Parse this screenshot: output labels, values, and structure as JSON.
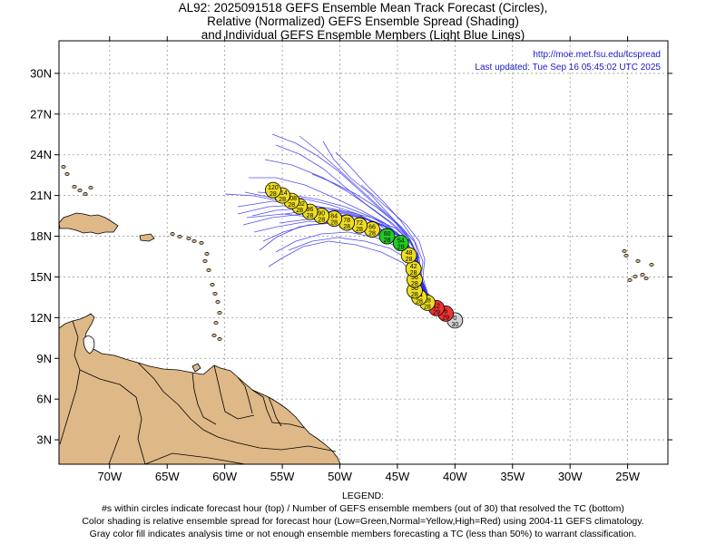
{
  "title": {
    "line1": "AL92: 2025091518 GEFS Ensemble Mean Track Forecast (Circles),",
    "line2": "Relative (Normalized) GEFS Ensemble Spread (Shading)",
    "line3": "and Individual GEFS Ensemble Members (Light Blue Lines)"
  },
  "info": {
    "url": "http://moe.met.fsu.edu/tcspread",
    "updated": "Last updated: Tue Sep 16 05:45:02 UTC 2025"
  },
  "axes": {
    "lat_labels": [
      "30N",
      "27N",
      "24N",
      "21N",
      "18N",
      "15N",
      "12N",
      "9N",
      "6N",
      "3N"
    ],
    "lat_values": [
      30,
      27,
      24,
      21,
      18,
      15,
      12,
      9,
      6,
      3
    ],
    "lon_labels": [
      "70W",
      "65W",
      "60W",
      "55W",
      "50W",
      "45W",
      "40W",
      "35W",
      "30W",
      "25W"
    ],
    "lon_values": [
      -70,
      -65,
      -60,
      -55,
      -50,
      -45,
      -40,
      -35,
      -30,
      -25
    ],
    "lat_range": [
      1.2,
      32.4
    ],
    "lon_range": [
      -74.4,
      -21.5
    ]
  },
  "colors": {
    "land": "#DEB887",
    "member_line": "#3333ee",
    "gray": "#d3d3d3",
    "green": "#22cc22",
    "yellow": "#eedd22",
    "red": "#ee3333",
    "grid": "#999999"
  },
  "track": [
    {
      "hour": "0",
      "members": "30",
      "lon": -40.0,
      "lat": 11.8,
      "color": "gray"
    },
    {
      "hour": "6",
      "members": "29",
      "lon": -40.8,
      "lat": 12.3,
      "color": "red"
    },
    {
      "hour": "12",
      "members": "29",
      "lon": -41.6,
      "lat": 12.7,
      "color": "red"
    },
    {
      "hour": "18",
      "members": "28",
      "lon": -42.4,
      "lat": 13.1,
      "color": "yellow"
    },
    {
      "hour": "24",
      "members": "28",
      "lon": -43.1,
      "lat": 13.5,
      "color": "yellow"
    },
    {
      "hour": "30",
      "members": "28",
      "lon": -43.5,
      "lat": 14.0,
      "color": "yellow"
    },
    {
      "hour": "36",
      "members": "28",
      "lon": -43.5,
      "lat": 14.8,
      "color": "yellow"
    },
    {
      "hour": "42",
      "members": "28",
      "lon": -43.6,
      "lat": 15.6,
      "color": "yellow"
    },
    {
      "hour": "48",
      "members": "28",
      "lon": -44.0,
      "lat": 16.6,
      "color": "yellow"
    },
    {
      "hour": "54",
      "members": "28",
      "lon": -44.7,
      "lat": 17.5,
      "color": "green"
    },
    {
      "hour": "60",
      "members": "28",
      "lon": -45.9,
      "lat": 18.0,
      "color": "green"
    },
    {
      "hour": "66",
      "members": "28",
      "lon": -47.2,
      "lat": 18.5,
      "color": "yellow"
    },
    {
      "hour": "72",
      "members": "28",
      "lon": -48.3,
      "lat": 18.8,
      "color": "yellow"
    },
    {
      "hour": "78",
      "members": "28",
      "lon": -49.4,
      "lat": 19.0,
      "color": "yellow"
    },
    {
      "hour": "84",
      "members": "28",
      "lon": -50.5,
      "lat": 19.3,
      "color": "yellow"
    },
    {
      "hour": "90",
      "members": "28",
      "lon": -51.6,
      "lat": 19.5,
      "color": "yellow"
    },
    {
      "hour": "96",
      "members": "28",
      "lon": -52.6,
      "lat": 19.8,
      "color": "yellow"
    },
    {
      "hour": "102",
      "members": "28",
      "lon": -53.5,
      "lat": 20.2,
      "color": "yellow"
    },
    {
      "hour": "108",
      "members": "28",
      "lon": -54.2,
      "lat": 20.6,
      "color": "yellow"
    },
    {
      "hour": "114",
      "members": "28",
      "lon": -55.0,
      "lat": 21.0,
      "color": "yellow"
    },
    {
      "hour": "120",
      "members": "28",
      "lon": -55.8,
      "lat": 21.4,
      "color": "yellow"
    }
  ],
  "legend": {
    "heading": "LEGEND:",
    "line1": "#s within circles indicate forecast hour (top) / Number of GEFS ensemble members (out of 30) that resolved the TC (bottom)",
    "line2": "Color shading is relative ensemble spread for forecast hour (Low=Green,Normal=Yellow,High=Red) using 2004-11 GEFS climatology.",
    "line3": "Gray color fill indicates analysis time or not enough ensemble members forecasting a TC (less than 50%) to warrant classification."
  }
}
